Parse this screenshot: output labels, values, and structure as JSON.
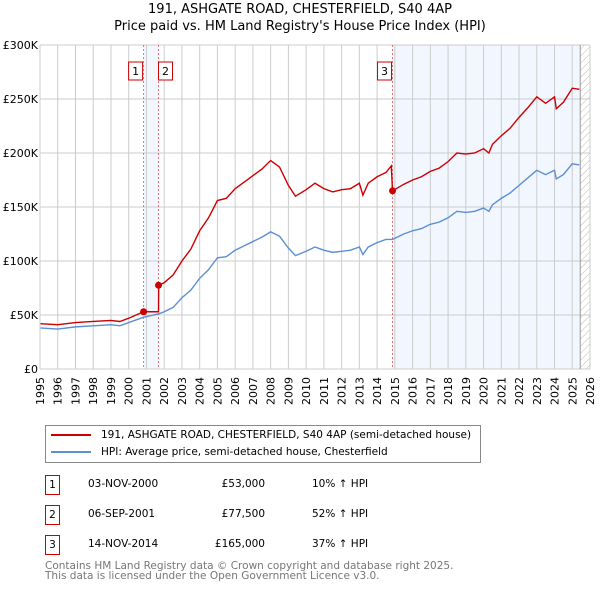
{
  "chart_data": {
    "type": "line",
    "title": "191, ASHGATE ROAD, CHESTERFIELD, S40 4AP",
    "subtitle": "Price paid vs. HM Land Registry's House Price Index (HPI)",
    "xlim": [
      1995,
      2026
    ],
    "ylim": [
      0,
      300000
    ],
    "y_ticks": [
      {
        "v": 0,
        "label": "£0"
      },
      {
        "v": 50000,
        "label": "£50K"
      },
      {
        "v": 100000,
        "label": "£100K"
      },
      {
        "v": 150000,
        "label": "£150K"
      },
      {
        "v": 200000,
        "label": "£200K"
      },
      {
        "v": 250000,
        "label": "£250K"
      },
      {
        "v": 300000,
        "label": "£300K"
      }
    ],
    "x_ticks": [
      "1995",
      "1996",
      "1997",
      "1998",
      "1999",
      "2000",
      "2001",
      "2002",
      "2003",
      "2004",
      "2005",
      "2006",
      "2007",
      "2008",
      "2009",
      "2010",
      "2011",
      "2012",
      "2013",
      "2014",
      "2015",
      "2016",
      "2017",
      "2018",
      "2019",
      "2020",
      "2021",
      "2022",
      "2023",
      "2024",
      "2025",
      "2026"
    ],
    "grid": true,
    "series": [
      {
        "name": "191, ASHGATE ROAD, CHESTERFIELD, S40 4AP (semi-detached house)",
        "color": "#cc0000",
        "x": [
          1995,
          1996,
          1997,
          1998,
          1999,
          1999.5,
          2000,
          2000.84,
          2001.68,
          2001.69,
          2002,
          2002.5,
          2003,
          2003.5,
          2004,
          2004.5,
          2005,
          2005.5,
          2006,
          2006.5,
          2007,
          2007.5,
          2008,
          2008.5,
          2009,
          2009.4,
          2010,
          2010.5,
          2011,
          2011.5,
          2012,
          2012.5,
          2013,
          2013.2,
          2013.5,
          2014,
          2014.5,
          2014.8,
          2014.87,
          2015.5,
          2016,
          2016.5,
          2017,
          2017.5,
          2018,
          2018.5,
          2019,
          2019.5,
          2020,
          2020.3,
          2020.5,
          2021,
          2021.5,
          2022,
          2022.5,
          2023,
          2023.5,
          2024,
          2024.1,
          2024.5,
          2025,
          2025.4
        ],
        "y": [
          42000,
          41000,
          43000,
          44000,
          45000,
          44000,
          47000,
          53000,
          53000,
          77500,
          80000,
          87000,
          100000,
          111000,
          128000,
          140000,
          156000,
          158000,
          167000,
          173000,
          179000,
          185000,
          193000,
          187000,
          170000,
          160000,
          166000,
          172000,
          167000,
          164000,
          166000,
          167000,
          172000,
          161000,
          172000,
          178000,
          182000,
          188000,
          165000,
          171000,
          175000,
          178000,
          183000,
          186000,
          192000,
          200000,
          199000,
          200000,
          204000,
          200000,
          208000,
          216000,
          223000,
          233000,
          242000,
          252000,
          246000,
          252000,
          241000,
          247000,
          260000,
          259000
        ]
      },
      {
        "name": "HPI: Average price, semi-detached house, Chesterfield",
        "color": "#5b8fd4",
        "x": [
          1995,
          1996,
          1997,
          1998,
          1999,
          1999.5,
          2000,
          2000.84,
          2001.68,
          2002,
          2002.5,
          2003,
          2003.5,
          2004,
          2004.5,
          2005,
          2005.5,
          2006,
          2006.5,
          2007,
          2007.5,
          2008,
          2008.5,
          2009,
          2009.4,
          2010,
          2010.5,
          2011,
          2011.5,
          2012,
          2012.5,
          2013,
          2013.2,
          2013.5,
          2014,
          2014.5,
          2014.87,
          2015.5,
          2016,
          2016.5,
          2017,
          2017.5,
          2018,
          2018.5,
          2019,
          2019.5,
          2020,
          2020.3,
          2020.5,
          2021,
          2021.5,
          2022,
          2022.5,
          2023,
          2023.5,
          2024,
          2024.1,
          2024.5,
          2025,
          2025.4
        ],
        "y": [
          38000,
          37000,
          39000,
          40000,
          41000,
          40000,
          43000,
          48000,
          51000,
          53000,
          57000,
          66000,
          73000,
          84000,
          92000,
          103000,
          104000,
          110000,
          114000,
          118000,
          122000,
          127000,
          123000,
          112000,
          105000,
          109000,
          113000,
          110000,
          108000,
          109000,
          110000,
          113000,
          106000,
          113000,
          117000,
          120000,
          120000,
          125000,
          128000,
          130000,
          134000,
          136000,
          140000,
          146000,
          145000,
          146000,
          149000,
          146000,
          152000,
          158000,
          163000,
          170000,
          177000,
          184000,
          180000,
          184000,
          176000,
          180000,
          190000,
          189000
        ]
      }
    ],
    "sales": [
      {
        "label": "1",
        "x": 2000.84,
        "y": 53000
      },
      {
        "label": "2",
        "x": 2001.68,
        "y": 77500
      },
      {
        "label": "3",
        "x": 2014.87,
        "y": 165000
      }
    ],
    "shaded_ranges": [
      [
        2000.84,
        2001.68
      ],
      [
        2014.87,
        2025.45
      ]
    ],
    "forecast_from": 2025.45,
    "legend_placement": "below"
  },
  "table": [
    {
      "num": "1",
      "date": "03-NOV-2000",
      "price": "£53,000",
      "hpi": "10% ↑ HPI"
    },
    {
      "num": "2",
      "date": "06-SEP-2001",
      "price": "£77,500",
      "hpi": "52% ↑ HPI"
    },
    {
      "num": "3",
      "date": "14-NOV-2014",
      "price": "£165,000",
      "hpi": "37% ↑ HPI"
    }
  ],
  "footer": [
    "Contains HM Land Registry data © Crown copyright and database right 2025.",
    "This data is licensed under the Open Government Licence v3.0."
  ]
}
